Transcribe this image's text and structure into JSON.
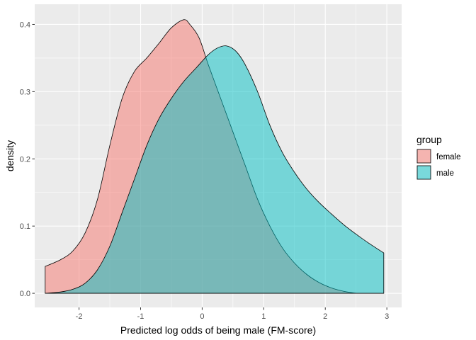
{
  "chart_data": {
    "type": "area",
    "xlabel": "Predicted log odds of being male (FM-score)",
    "ylabel": "density",
    "xlim": [
      -2.72,
      3.24
    ],
    "ylim": [
      -0.021,
      0.43
    ],
    "x_ticks": [
      -2,
      -1,
      0,
      1,
      2,
      3
    ],
    "x_tick_labels": [
      "-2",
      "-1",
      "0",
      "1",
      "2",
      "3"
    ],
    "y_ticks": [
      0.0,
      0.1,
      0.2,
      0.3,
      0.4
    ],
    "y_tick_labels": [
      "0.0",
      "0.1",
      "0.2",
      "0.3",
      "0.4"
    ],
    "grid": true,
    "legend": {
      "title": "group",
      "position": "right"
    },
    "series": [
      {
        "name": "female",
        "color": "#F8766D",
        "x": [
          -2.55,
          -2.3,
          -2.1,
          -1.9,
          -1.7,
          -1.5,
          -1.3,
          -1.1,
          -0.9,
          -0.7,
          -0.5,
          -0.3,
          -0.2,
          -0.05,
          0.1,
          0.3,
          0.5,
          0.7,
          0.9,
          1.1,
          1.3,
          1.5,
          1.7,
          1.9,
          2.1,
          2.3,
          2.5
        ],
        "values": [
          0.04,
          0.05,
          0.063,
          0.09,
          0.14,
          0.22,
          0.29,
          0.33,
          0.35,
          0.372,
          0.395,
          0.407,
          0.4,
          0.38,
          0.34,
          0.29,
          0.24,
          0.19,
          0.14,
          0.1,
          0.068,
          0.045,
          0.028,
          0.016,
          0.008,
          0.003,
          0.0
        ]
      },
      {
        "name": "male",
        "color": "#00BFC4",
        "x": [
          -2.55,
          -2.3,
          -2.1,
          -1.9,
          -1.7,
          -1.5,
          -1.3,
          -1.1,
          -0.9,
          -0.7,
          -0.5,
          -0.3,
          -0.1,
          0.1,
          0.25,
          0.4,
          0.55,
          0.7,
          0.9,
          1.1,
          1.3,
          1.5,
          1.7,
          1.9,
          2.1,
          2.3,
          2.5,
          2.7,
          2.95
        ],
        "values": [
          0.0,
          0.002,
          0.006,
          0.015,
          0.035,
          0.07,
          0.12,
          0.17,
          0.22,
          0.26,
          0.29,
          0.315,
          0.335,
          0.355,
          0.365,
          0.368,
          0.36,
          0.34,
          0.3,
          0.25,
          0.21,
          0.18,
          0.155,
          0.135,
          0.118,
          0.102,
          0.088,
          0.075,
          0.06
        ]
      }
    ]
  }
}
